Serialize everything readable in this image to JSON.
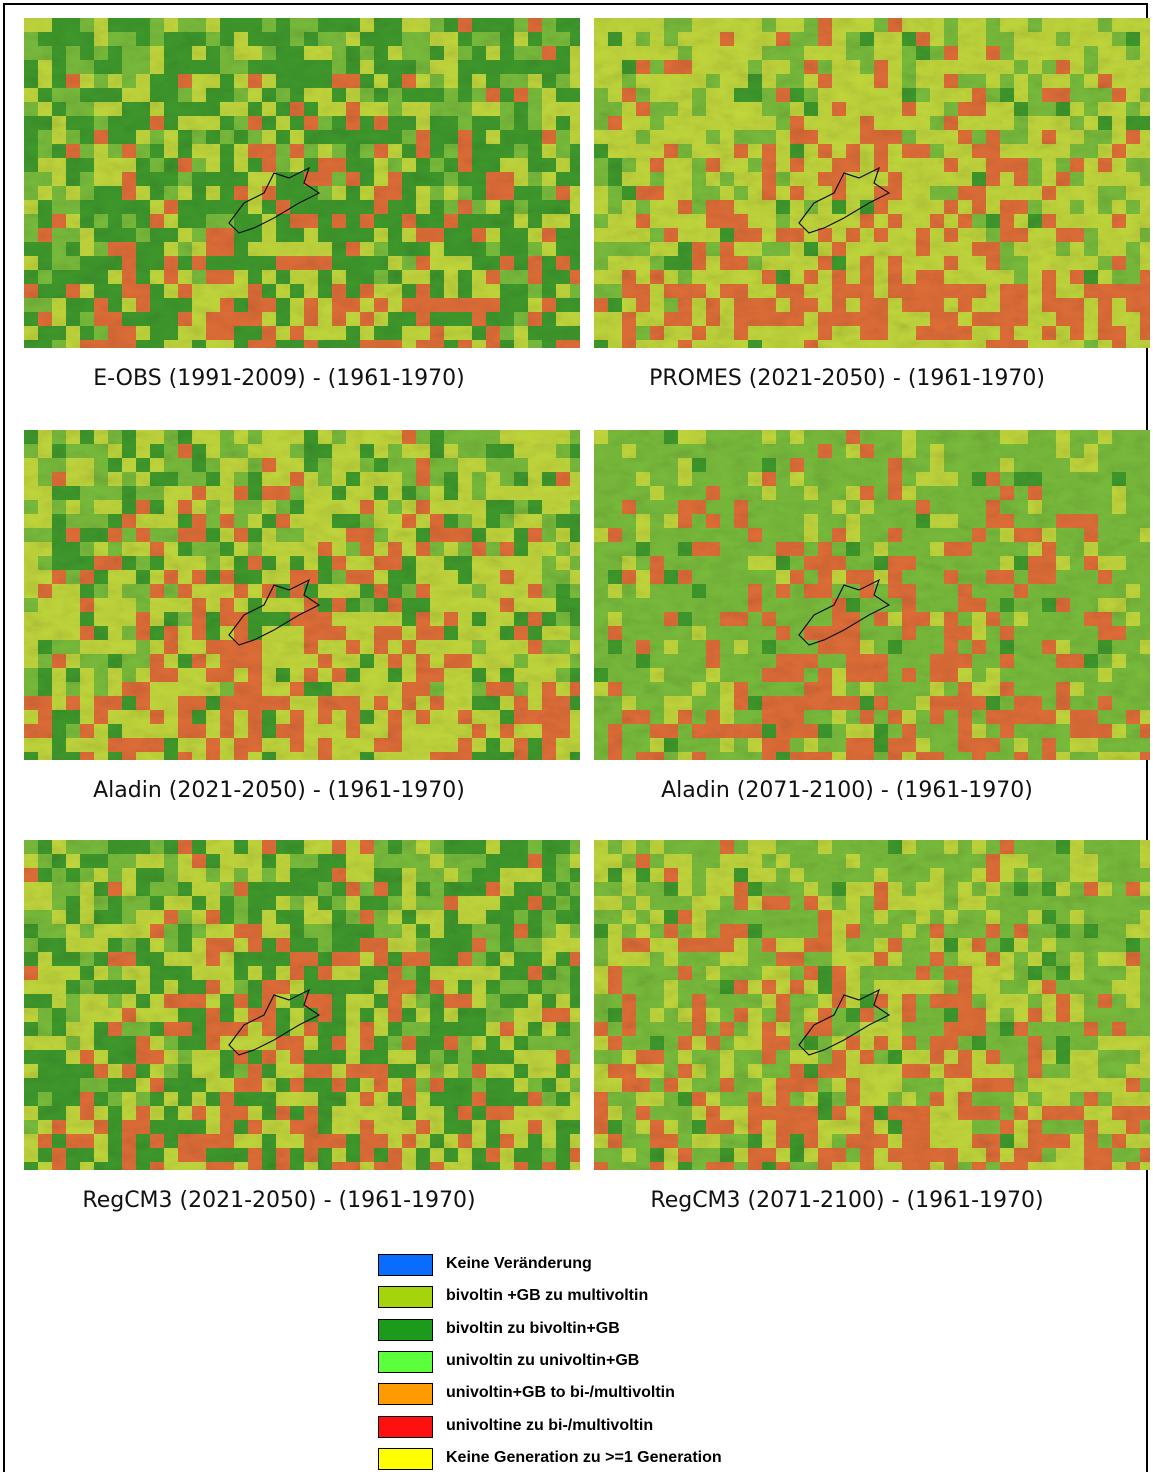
{
  "panels": [
    {
      "caption": "E-OBS (1991-2009) - (1961-1970)"
    },
    {
      "caption": "PROMES (2021-2050) - (1961-1970)"
    },
    {
      "caption": "Aladin (2021-2050) - (1961-1970)"
    },
    {
      "caption": "Aladin (2071-2100) - (1961-1970)"
    },
    {
      "caption": "RegCM3 (2021-2050) - (1961-1970)"
    },
    {
      "caption": "RegCM3 (2071-2100) - (1961-1970)"
    }
  ],
  "legend": [
    {
      "label": "Keine Veränderung",
      "color": "#0a6cff"
    },
    {
      "label": "bivoltin +GB zu multivoltin",
      "color": "#a6d40c"
    },
    {
      "label": "bivoltin zu bivoltin+GB",
      "color": "#1c9a1c"
    },
    {
      "label": "univoltin zu univoltin+GB",
      "color": "#5cff3c"
    },
    {
      "label": "univoltin+GB to bi-/multivoltin",
      "color": "#ff9a00"
    },
    {
      "label": "univoltine zu bi-/multivoltin",
      "color": "#ff1010"
    },
    {
      "label": "Keine Generation  zu >=1 Generation",
      "color": "#ffff00"
    }
  ]
}
